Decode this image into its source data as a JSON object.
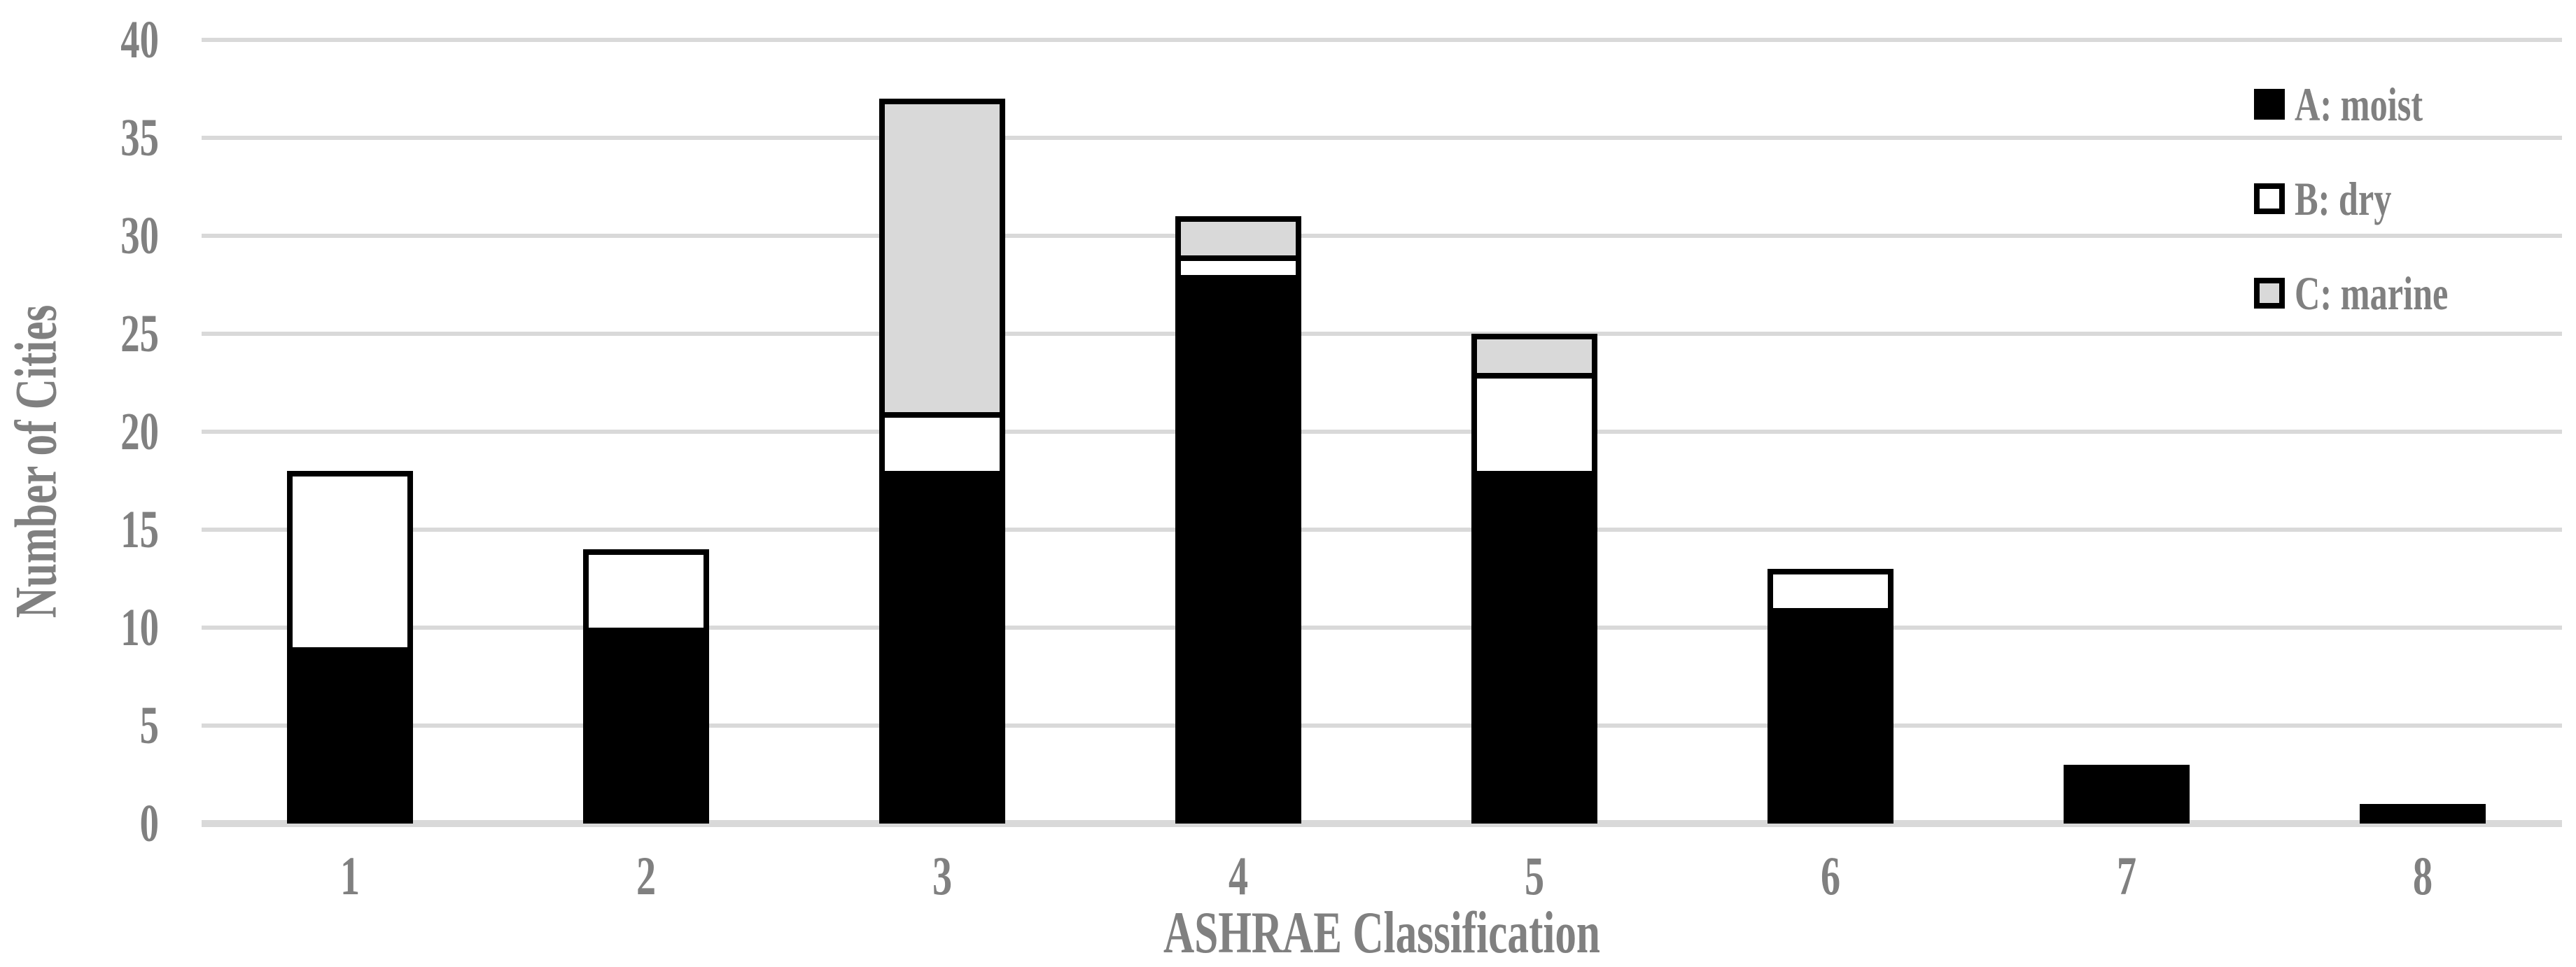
{
  "chart_data": {
    "type": "bar",
    "stacked": true,
    "title": "",
    "xlabel": "ASHRAE Classification",
    "ylabel": "Number of Cities",
    "categories": [
      "1",
      "2",
      "3",
      "4",
      "5",
      "6",
      "7",
      "8"
    ],
    "series": [
      {
        "name": "A: moist",
        "color": "#000000",
        "values": [
          9,
          10,
          18,
          28,
          18,
          11,
          3,
          1
        ]
      },
      {
        "name": "B: dry",
        "color": "#ffffff",
        "values": [
          9,
          4,
          3,
          1,
          5,
          2,
          0,
          0
        ]
      },
      {
        "name": "C: marine",
        "color": "#d9d9d9",
        "values": [
          0,
          0,
          16,
          2,
          2,
          0,
          0,
          0
        ]
      }
    ],
    "yticks": [
      "0",
      "5",
      "10",
      "15",
      "20",
      "25",
      "30",
      "35",
      "40"
    ],
    "ylim": [
      0,
      40
    ],
    "ytick_step": 5,
    "grid": true,
    "legend_position": "top-right"
  },
  "colors": {
    "text_gray": "#808080",
    "gridline": "#d9d9d9",
    "bar_border": "#000000",
    "series_a_fill": "#000000",
    "series_b_fill": "#ffffff",
    "series_c_fill": "#d9d9d9",
    "background": "#ffffff"
  }
}
